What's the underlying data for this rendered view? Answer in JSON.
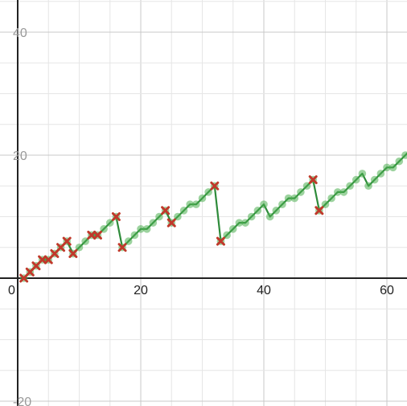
{
  "chart_data": {
    "type": "scatter",
    "xlim": [
      0,
      63
    ],
    "ylim": [
      -21,
      44
    ],
    "grid": true,
    "x_ticks": [
      {
        "value": 0,
        "label": "0"
      },
      {
        "value": 20,
        "label": "20"
      },
      {
        "value": 40,
        "label": "40"
      },
      {
        "value": 60,
        "label": "60"
      }
    ],
    "y_ticks": [
      {
        "value": 40,
        "label": "40"
      },
      {
        "value": 20,
        "label": "20"
      },
      {
        "value": -20,
        "label": "-20"
      }
    ],
    "colors": {
      "line": "#2e8b3a",
      "dot": "#4caf50",
      "cross": "#c0392b",
      "axis": "#222222",
      "grid_minor": "#e6e6e6",
      "grid_major": "#c8c8c8"
    },
    "series": [
      {
        "style": "line-with-dots",
        "points": [
          [
            1,
            0
          ],
          [
            2,
            1
          ],
          [
            3,
            2
          ],
          [
            4,
            3
          ],
          [
            5,
            3
          ],
          [
            6,
            4
          ],
          [
            7,
            5
          ],
          [
            8,
            6
          ],
          [
            9,
            4
          ],
          [
            10,
            5
          ],
          [
            11,
            6
          ],
          [
            12,
            7
          ],
          [
            13,
            7
          ],
          [
            14,
            8
          ],
          [
            15,
            9
          ],
          [
            16,
            10
          ],
          [
            17,
            5
          ],
          [
            18,
            6
          ],
          [
            19,
            7
          ],
          [
            20,
            8
          ],
          [
            21,
            8
          ],
          [
            22,
            9
          ],
          [
            23,
            10
          ],
          [
            24,
            11
          ],
          [
            25,
            9
          ],
          [
            26,
            10
          ],
          [
            27,
            11
          ],
          [
            28,
            12
          ],
          [
            29,
            12
          ],
          [
            30,
            13
          ],
          [
            31,
            14
          ],
          [
            32,
            15
          ],
          [
            33,
            6
          ],
          [
            34,
            7
          ],
          [
            35,
            8
          ],
          [
            36,
            9
          ],
          [
            37,
            9
          ],
          [
            38,
            10
          ],
          [
            39,
            11
          ],
          [
            40,
            12
          ],
          [
            41,
            10
          ],
          [
            42,
            11
          ],
          [
            43,
            12
          ],
          [
            44,
            13
          ],
          [
            45,
            13
          ],
          [
            46,
            14
          ],
          [
            47,
            15
          ],
          [
            48,
            16
          ],
          [
            49,
            11
          ],
          [
            50,
            12
          ],
          [
            51,
            13
          ],
          [
            52,
            14
          ],
          [
            53,
            14
          ],
          [
            54,
            15
          ],
          [
            55,
            16
          ],
          [
            56,
            17
          ],
          [
            57,
            15
          ],
          [
            58,
            16
          ],
          [
            59,
            17
          ],
          [
            60,
            18
          ],
          [
            61,
            18
          ],
          [
            62,
            19
          ],
          [
            63,
            20
          ],
          [
            64,
            21
          ]
        ]
      },
      {
        "style": "cross",
        "points": [
          [
            1,
            0
          ],
          [
            2,
            1
          ],
          [
            3,
            2
          ],
          [
            4,
            3
          ],
          [
            5,
            3
          ],
          [
            6,
            4
          ],
          [
            7,
            5
          ],
          [
            8,
            6
          ],
          [
            9,
            4
          ],
          [
            12,
            7
          ],
          [
            13,
            7
          ],
          [
            16,
            10
          ],
          [
            17,
            5
          ],
          [
            24,
            11
          ],
          [
            25,
            9
          ],
          [
            32,
            15
          ],
          [
            33,
            6
          ],
          [
            48,
            16
          ],
          [
            49,
            11
          ],
          [
            64,
            21
          ]
        ]
      }
    ]
  }
}
